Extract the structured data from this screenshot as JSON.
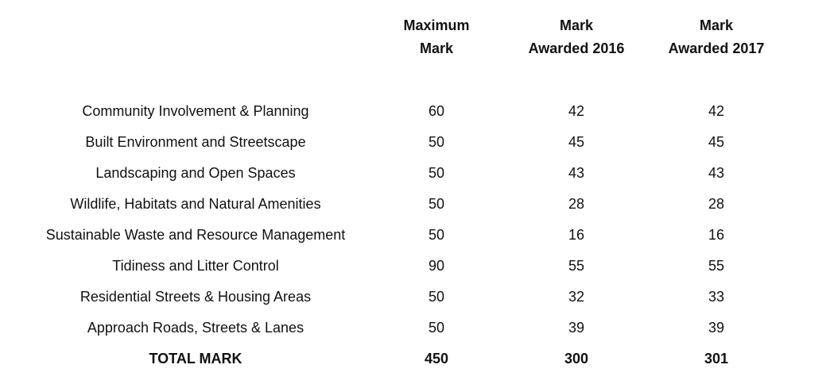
{
  "headers": {
    "maximum_line1": "Maximum",
    "maximum_line2": "Mark",
    "y2016_line1": "Mark",
    "y2016_line2": "Awarded 2016",
    "y2017_line1": "Mark",
    "y2017_line2": "Awarded 2017"
  },
  "rows": [
    {
      "label": "Community Involvement & Planning",
      "max": "60",
      "y2016": "42",
      "y2017": "42"
    },
    {
      "label": "Built Environment and Streetscape",
      "max": "50",
      "y2016": "45",
      "y2017": "45"
    },
    {
      "label": "Landscaping and Open Spaces",
      "max": "50",
      "y2016": "43",
      "y2017": "43"
    },
    {
      "label": "Wildlife, Habitats and Natural Amenities",
      "max": "50",
      "y2016": "28",
      "y2017": "28"
    },
    {
      "label": "Sustainable Waste and Resource Management",
      "max": "50",
      "y2016": "16",
      "y2017": "16"
    },
    {
      "label": "Tidiness and Litter Control",
      "max": "90",
      "y2016": "55",
      "y2017": "55"
    },
    {
      "label": "Residential Streets & Housing Areas",
      "max": "50",
      "y2016": "32",
      "y2017": "33"
    },
    {
      "label": "Approach Roads, Streets & Lanes",
      "max": "50",
      "y2016": "39",
      "y2017": "39"
    }
  ],
  "total": {
    "label": "TOTAL MARK",
    "max": "450",
    "y2016": "300",
    "y2017": "301"
  }
}
